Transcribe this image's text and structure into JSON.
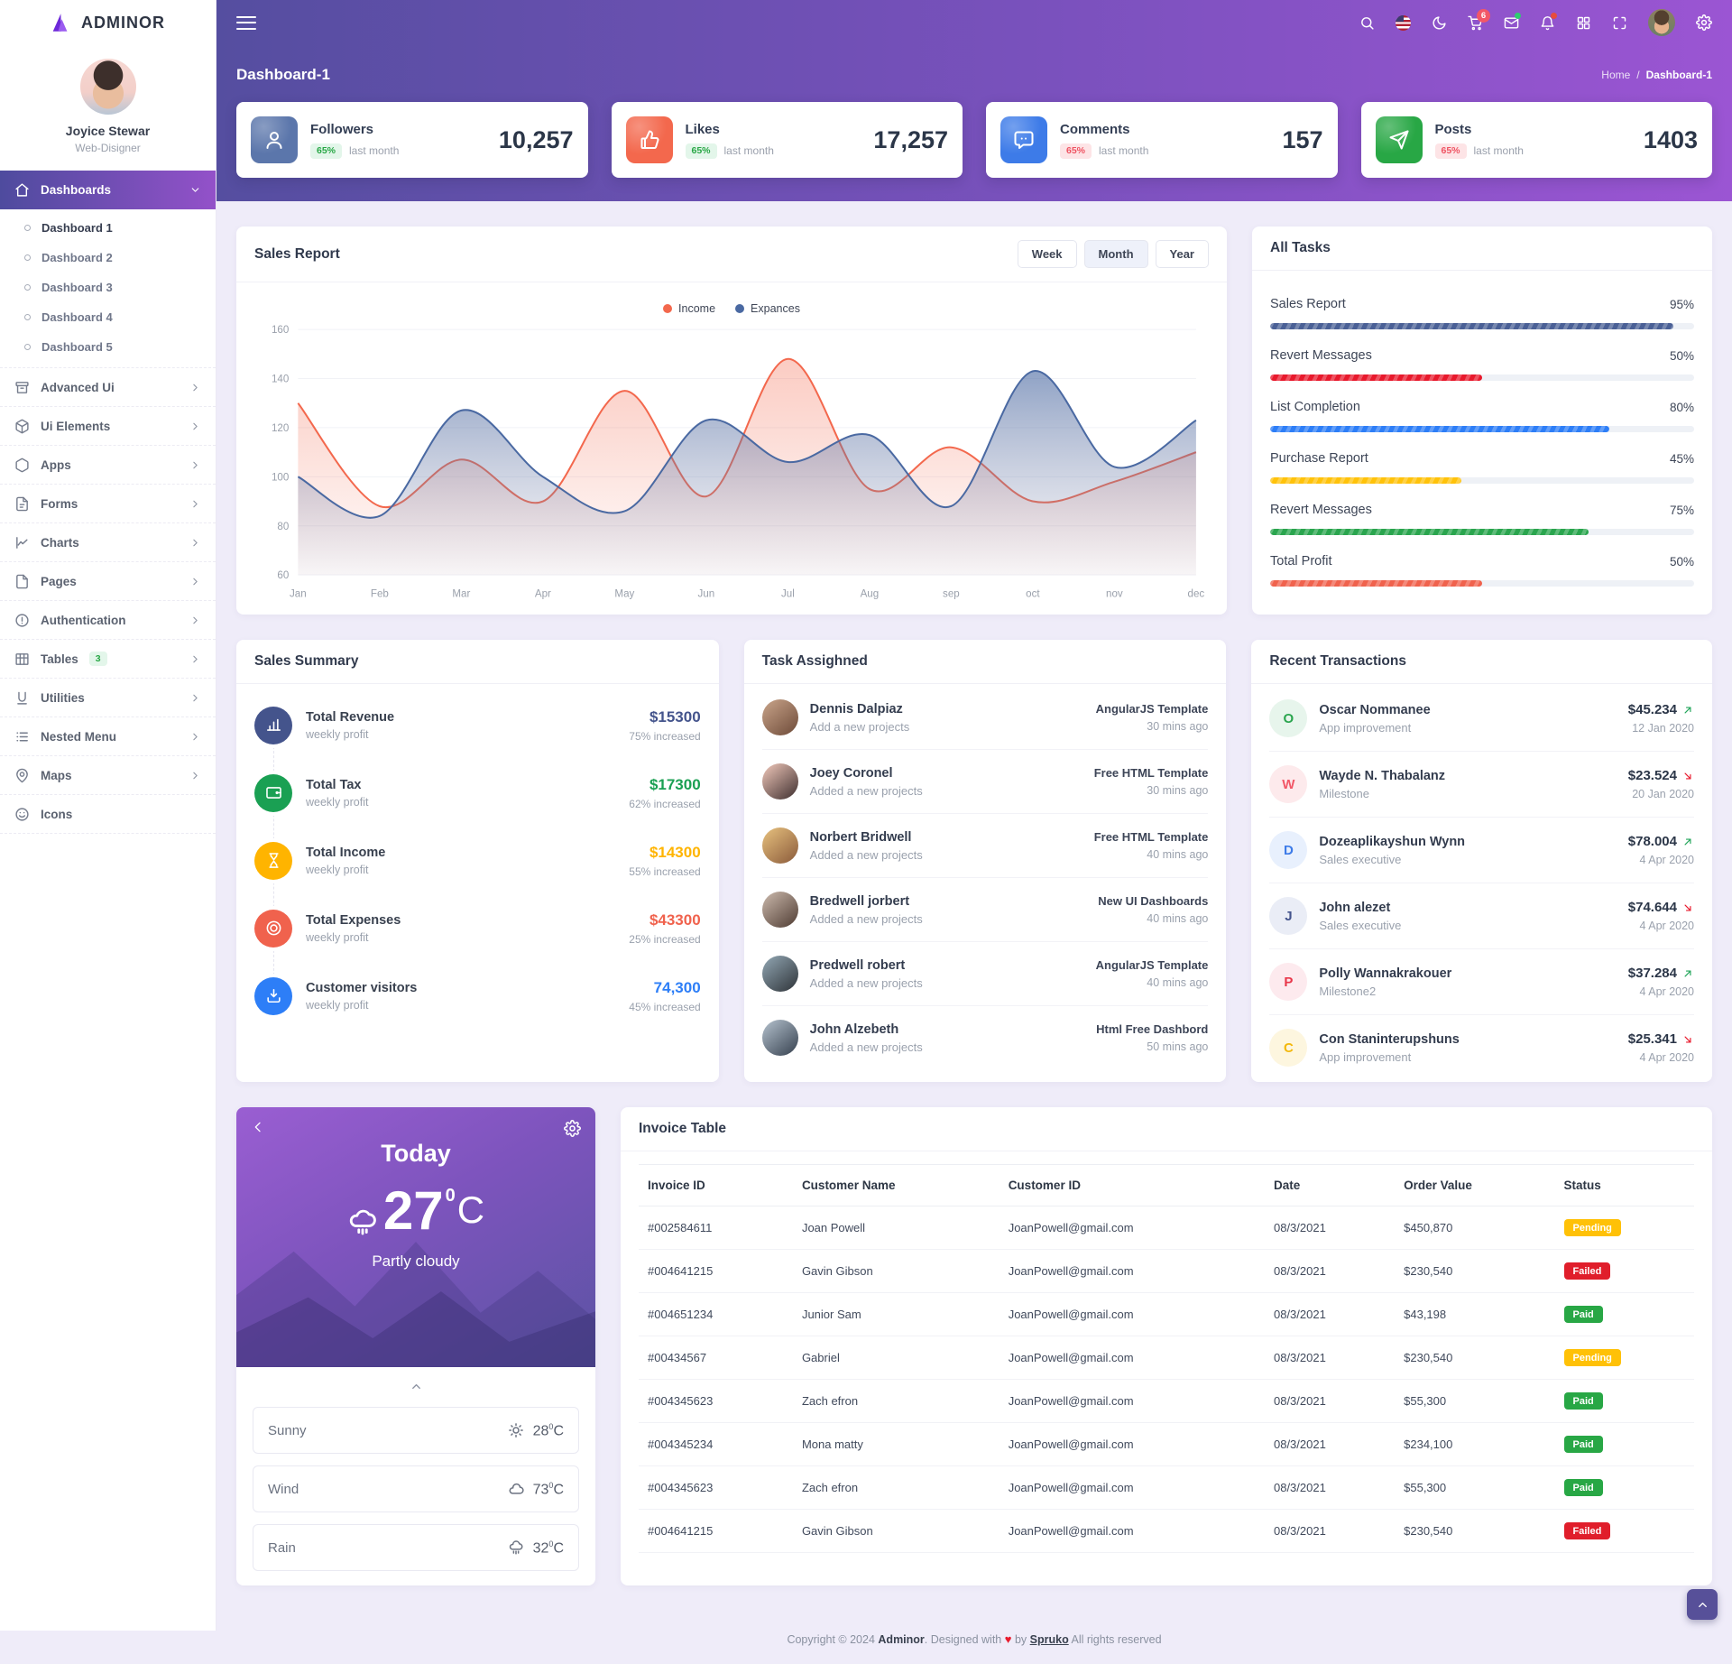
{
  "brand": {
    "logo_text": "ADMINOR"
  },
  "user": {
    "name": "Joyice Stewar",
    "role": "Web-Disigner"
  },
  "header": {
    "icons": [
      {
        "name": "search"
      },
      {
        "name": "flag-us"
      },
      {
        "name": "moon"
      },
      {
        "name": "cart",
        "badge": "6"
      },
      {
        "name": "mail",
        "dot": "#2ecc71"
      },
      {
        "name": "bell",
        "dot": "#e74c3c"
      },
      {
        "name": "grid"
      },
      {
        "name": "maximize"
      }
    ]
  },
  "page": {
    "title": "Dashboard-1",
    "breadcrumb_home": "Home",
    "breadcrumb_sep": "/",
    "breadcrumb_current": "Dashboard-1"
  },
  "sidebar": {
    "items": [
      {
        "label": "Dashboards",
        "icon": "home",
        "active": true,
        "expanded": true,
        "children": [
          "Dashboard 1",
          "Dashboard 2",
          "Dashboard 3",
          "Dashboard 4",
          "Dashboard 5"
        ],
        "active_child": "Dashboard 1"
      },
      {
        "label": "Advanced Ui",
        "icon": "archive",
        "chevron": true
      },
      {
        "label": "Ui Elements",
        "icon": "box",
        "chevron": true
      },
      {
        "label": "Apps",
        "icon": "hexagon",
        "chevron": true
      },
      {
        "label": "Forms",
        "icon": "file-text",
        "chevron": true
      },
      {
        "label": "Charts",
        "icon": "chart-line",
        "chevron": true
      },
      {
        "label": "Pages",
        "icon": "page",
        "chevron": true
      },
      {
        "label": "Authentication",
        "icon": "alert-circle",
        "chevron": true
      },
      {
        "label": "Tables",
        "icon": "table",
        "badge": "3",
        "chevron": true
      },
      {
        "label": "Utilities",
        "icon": "utilities",
        "chevron": true
      },
      {
        "label": "Nested Menu",
        "icon": "list",
        "chevron": true
      },
      {
        "label": "Maps",
        "icon": "map-pin",
        "chevron": true
      },
      {
        "label": "Icons",
        "icon": "smile",
        "chevron": false
      }
    ]
  },
  "stats": {
    "cards": [
      {
        "label": "Followers",
        "badge": "65%",
        "badge_tone": "green",
        "note": "last month",
        "value": "10,257",
        "icon": "user",
        "color": "#5b76ab"
      },
      {
        "label": "Likes",
        "badge": "65%",
        "badge_tone": "green",
        "note": "last month",
        "value": "17,257",
        "icon": "thumbs-up",
        "color": "#f3684d"
      },
      {
        "label": "Comments",
        "badge": "65%",
        "badge_tone": "red",
        "note": "last month",
        "value": "157",
        "icon": "message",
        "color": "#3d7be8"
      },
      {
        "label": "Posts",
        "badge": "65%",
        "badge_tone": "red",
        "note": "last month",
        "value": "1403",
        "icon": "send",
        "color": "#28a745"
      }
    ]
  },
  "sales_report": {
    "title": "Sales Report",
    "tabs": [
      "Week",
      "Month",
      "Year"
    ],
    "active_tab": "Month"
  },
  "chart_data": {
    "type": "area",
    "title": "Sales Report",
    "x": [
      "Jan",
      "Feb",
      "Mar",
      "Apr",
      "May",
      "Jun",
      "Jul",
      "Aug",
      "sep",
      "oct",
      "nov",
      "dec"
    ],
    "series": [
      {
        "name": "Income",
        "color": "#f3684d",
        "values": [
          130,
          88,
          107,
          90,
          135,
          92,
          148,
          95,
          112,
          90,
          98,
          110
        ]
      },
      {
        "name": "Expances",
        "color": "#4a69a2",
        "values": [
          100,
          84,
          127,
          100,
          86,
          123,
          106,
          117,
          88,
          143,
          104,
          123
        ]
      }
    ],
    "ylim": [
      60,
      160
    ],
    "yticks": [
      160,
      140,
      120,
      100,
      80,
      60
    ],
    "grid": true,
    "legend_position": "top"
  },
  "all_tasks": {
    "title": "All Tasks",
    "items": [
      {
        "label": "Sales Report",
        "pct": 95,
        "color": "#4a6096"
      },
      {
        "label": "Revert Messages",
        "pct": 50,
        "color": "#e8192c"
      },
      {
        "label": "List Completion",
        "pct": 80,
        "color": "#2d7ef7"
      },
      {
        "label": "Purchase Report",
        "pct": 45,
        "color": "#ffc20a"
      },
      {
        "label": "Revert Messages",
        "pct": 75,
        "color": "#2aa54e"
      },
      {
        "label": "Total Profit",
        "pct": 50,
        "color": "#f0624d"
      }
    ]
  },
  "sales_summary": {
    "title": "Sales Summary",
    "items": [
      {
        "title": "Total Revenue",
        "sub": "weekly profit",
        "value": "$15300",
        "change": "75% increased",
        "color": "#44548c",
        "icon": "bar-chart"
      },
      {
        "title": "Total Tax",
        "sub": "weekly profit",
        "value": "$17300",
        "change": "62% increased",
        "color": "#1aa053",
        "icon": "wallet"
      },
      {
        "title": "Total Income",
        "sub": "weekly profit",
        "value": "$14300",
        "change": "55% increased",
        "color": "#ffb400",
        "icon": "hourglass"
      },
      {
        "title": "Total Expenses",
        "sub": "weekly profit",
        "value": "$43300",
        "change": "25% increased",
        "color": "#f0624d",
        "icon": "target"
      },
      {
        "title": "Customer visitors",
        "sub": "weekly profit",
        "value": "74,300",
        "change": "45% increased",
        "color": "#2d7ef7",
        "icon": "tray"
      }
    ]
  },
  "task_assigned": {
    "title": "Task Assighned",
    "items": [
      {
        "name": "Dennis Dalpiaz",
        "action": "Add a new projects",
        "project": "AngularJS Template",
        "time": "30 mins ago",
        "avatar": "linear-gradient(140deg,#caa58b,#6d4a38)"
      },
      {
        "name": "Joey Coronel",
        "action": "Added a new projects",
        "project": "Free HTML Template",
        "time": "30 mins ago",
        "avatar": "linear-gradient(140deg,#f3cabc,#3d2e2e)"
      },
      {
        "name": "Norbert Bridwell",
        "action": "Added a new projects",
        "project": "Free HTML Template",
        "time": "40 mins ago",
        "avatar": "linear-gradient(140deg,#e8c27f,#8a5a3a)"
      },
      {
        "name": "Bredwell jorbert",
        "action": "Added a new projects",
        "project": "New UI Dashboards",
        "time": "40 mins ago",
        "avatar": "linear-gradient(140deg,#cdbbae,#4e3b32)"
      },
      {
        "name": "Predwell robert",
        "action": "Added a new projects",
        "project": "AngularJS Template",
        "time": "40 mins ago",
        "avatar": "linear-gradient(140deg,#93a8b5,#2e3338)"
      },
      {
        "name": "John Alzebeth",
        "action": "Added a new projects",
        "project": "Html Free Dashbord",
        "time": "50 mins ago",
        "avatar": "linear-gradient(140deg,#b6c3cf,#35404e)"
      }
    ]
  },
  "recent_transactions": {
    "title": "Recent Transactions",
    "items": [
      {
        "initial": "O",
        "name": "Oscar Nommanee",
        "role": "App improvement",
        "amount": "$45.234",
        "dir": "up",
        "date": "12 Jan 2020",
        "tone": "#2aa54e",
        "bg": "#e7f5ec"
      },
      {
        "initial": "W",
        "name": "Wayde N. Thabalanz",
        "role": "Milestone",
        "amount": "$23.524",
        "dir": "down",
        "date": "20 Jan 2020",
        "tone": "#f25767",
        "bg": "#fdeaec"
      },
      {
        "initial": "D",
        "name": "Dozeaplikayshun Wynn",
        "role": "Sales executive",
        "amount": "$78.004",
        "dir": "up",
        "date": "4 Apr 2020",
        "tone": "#3d7be8",
        "bg": "#e8f0fd"
      },
      {
        "initial": "J",
        "name": "John alezet",
        "role": "Sales executive",
        "amount": "$74.644",
        "dir": "down",
        "date": "4 Apr 2020",
        "tone": "#44548c",
        "bg": "#eaedf6"
      },
      {
        "initial": "P",
        "name": "Polly Wannakrakouer",
        "role": "Milestone2",
        "amount": "$37.284",
        "dir": "up",
        "date": "4 Apr 2020",
        "tone": "#e8374a",
        "bg": "#fdeaee"
      },
      {
        "initial": "C",
        "name": "Con Staninterupshuns",
        "role": "App improvement",
        "amount": "$25.341",
        "dir": "down",
        "date": "4 Apr 2020",
        "tone": "#f3b80c",
        "bg": "#fdf6df"
      }
    ],
    "arrow_up_color": "#22a55a",
    "arrow_down_color": "#e8192c"
  },
  "weather": {
    "title": "Today",
    "temp": "27",
    "temp_sup": "0",
    "temp_unit": "C",
    "desc": "Partly cloudy",
    "rows": [
      {
        "label": "Sunny",
        "icon": "sun",
        "value": "28",
        "unit_sup": "0",
        "unit": "C"
      },
      {
        "label": "Wind",
        "icon": "cloud",
        "value": "73",
        "unit_sup": "0",
        "unit": "C"
      },
      {
        "label": "Rain",
        "icon": "rain",
        "value": "32",
        "unit_sup": "0",
        "unit": "C"
      }
    ]
  },
  "invoice": {
    "title": "Invoice Table",
    "columns": [
      "Invoice ID",
      "Customer Name",
      "Customer ID",
      "Date",
      "Order Value",
      "Status"
    ],
    "rows": [
      [
        "#002584611",
        "Joan Powell",
        "JoanPowell@gmail.com",
        "08/3/2021",
        "$450,870",
        "Pending"
      ],
      [
        "#004641215",
        "Gavin Gibson",
        "JoanPowell@gmail.com",
        "08/3/2021",
        "$230,540",
        "Failed"
      ],
      [
        "#004651234",
        "Junior Sam",
        "JoanPowell@gmail.com",
        "08/3/2021",
        "$43,198",
        "Paid"
      ],
      [
        "#00434567",
        "Gabriel",
        "JoanPowell@gmail.com",
        "08/3/2021",
        "$230,540",
        "Pending"
      ],
      [
        "#004345623",
        "Zach efron",
        "JoanPowell@gmail.com",
        "08/3/2021",
        "$55,300",
        "Paid"
      ],
      [
        "#004345234",
        "Mona matty",
        "JoanPowell@gmail.com",
        "08/3/2021",
        "$234,100",
        "Paid"
      ],
      [
        "#004345623",
        "Zach efron",
        "JoanPowell@gmail.com",
        "08/3/2021",
        "$55,300",
        "Paid"
      ],
      [
        "#004641215",
        "Gavin Gibson",
        "JoanPowell@gmail.com",
        "08/3/2021",
        "$230,540",
        "Failed"
      ]
    ],
    "status_colors": {
      "Pending": "#ffc107",
      "Failed": "#e01e2b",
      "Paid": "#28a745"
    }
  },
  "footer": {
    "prefix": "Copyright © 2024",
    "brand": "Adminor",
    "middle": ". Designed with",
    "heart": "♥",
    "by": "by",
    "owner": "Spruko",
    "suffix": "All rights reserved"
  }
}
